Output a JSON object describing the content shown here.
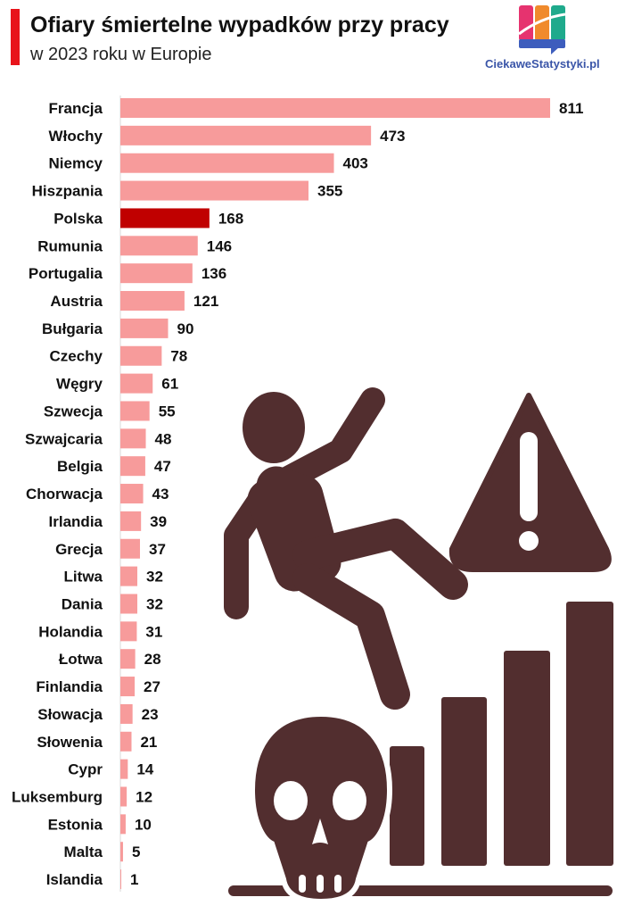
{
  "header": {
    "title": "Ofiary śmiertelne wypadków przy pracy",
    "subtitle": "w 2023 roku w Europie"
  },
  "logo": {
    "text": "CiekaweStatystyki.pl",
    "colors": [
      "#e6336f",
      "#f08a2c",
      "#1faa8c",
      "#3d5dbd"
    ]
  },
  "chart_data": {
    "type": "bar",
    "orientation": "horizontal",
    "title": "Ofiary śmiertelne wypadków przy pracy w 2023 roku w Europie",
    "categories": [
      "Francja",
      "Włochy",
      "Niemcy",
      "Hiszpania",
      "Polska",
      "Rumunia",
      "Portugalia",
      "Austria",
      "Bułgaria",
      "Czechy",
      "Węgry",
      "Szwecja",
      "Szwajcaria",
      "Belgia",
      "Chorwacja",
      "Irlandia",
      "Grecja",
      "Litwa",
      "Dania",
      "Holandia",
      "Łotwa",
      "Finlandia",
      "Słowacja",
      "Słowenia",
      "Cypr",
      "Luksemburg",
      "Estonia",
      "Malta",
      "Islandia"
    ],
    "values": [
      811,
      473,
      403,
      355,
      168,
      146,
      136,
      121,
      90,
      78,
      61,
      55,
      48,
      47,
      43,
      39,
      37,
      32,
      32,
      31,
      28,
      27,
      23,
      21,
      14,
      12,
      10,
      5,
      1
    ],
    "highlight": "Polska",
    "bar_color": "#f79b9b",
    "highlight_color": "#c00000",
    "xlim": [
      0,
      811
    ],
    "grid": false
  },
  "illustration": {
    "color": "#522e2f"
  }
}
